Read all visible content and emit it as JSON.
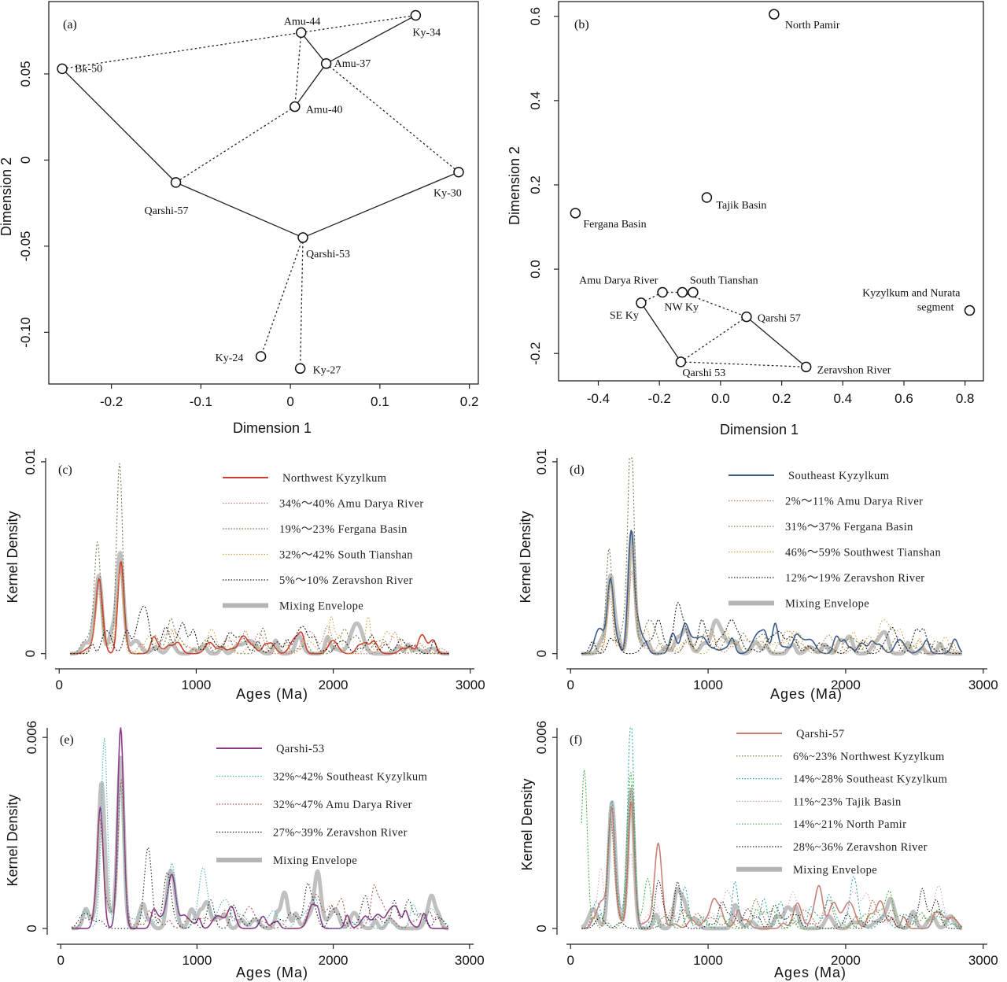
{
  "chart_data": [
    {
      "panel": "(a)",
      "type": "scatter",
      "xlabel": "Dimension 1",
      "ylabel": "Dimension 2",
      "xlim": [
        -0.27,
        0.21
      ],
      "ylim": [
        -0.13,
        0.092
      ],
      "xticks": [
        -0.2,
        -0.1,
        0,
        0.1,
        0.2
      ],
      "xtick_labels": [
        "-0.2",
        "-0.1",
        "0",
        "0.1",
        "0.2"
      ],
      "yticks": [
        -0.1,
        -0.05,
        0,
        0.05
      ],
      "ytick_labels": [
        "-0.10",
        "-0.05",
        "0",
        "0.05"
      ],
      "points": [
        {
          "label": "Bk-50",
          "x": -0.255,
          "y": 0.053
        },
        {
          "label": "Amu-44",
          "x": 0.012,
          "y": 0.074
        },
        {
          "label": "Ky-34",
          "x": 0.14,
          "y": 0.084
        },
        {
          "label": "Amu-37",
          "x": 0.04,
          "y": 0.056
        },
        {
          "label": "Amu-40",
          "x": 0.005,
          "y": 0.031
        },
        {
          "label": "Ky-30",
          "x": 0.188,
          "y": -0.007
        },
        {
          "label": "Qarshi-57",
          "x": -0.128,
          "y": -0.013
        },
        {
          "label": "Qarshi-53",
          "x": 0.014,
          "y": -0.045
        },
        {
          "label": "Ky-24",
          "x": -0.033,
          "y": -0.114
        },
        {
          "label": "Ky-27",
          "x": 0.011,
          "y": -0.121
        }
      ],
      "solid_links": [
        [
          "Bk-50",
          "Qarshi-57"
        ],
        [
          "Qarshi-57",
          "Qarshi-53"
        ],
        [
          "Qarshi-53",
          "Ky-30"
        ],
        [
          "Amu-37",
          "Ky-34"
        ],
        [
          "Amu-44",
          "Amu-37"
        ],
        [
          "Amu-37",
          "Amu-40"
        ]
      ],
      "dashed_links": [
        [
          "Bk-50",
          "Amu-44"
        ],
        [
          "Amu-44",
          "Ky-34"
        ],
        [
          "Amu-44",
          "Amu-40"
        ],
        [
          "Amu-40",
          "Qarshi-57"
        ],
        [
          "Amu-37",
          "Ky-30"
        ],
        [
          "Qarshi-53",
          "Ky-24"
        ],
        [
          "Qarshi-53",
          "Ky-27"
        ]
      ]
    },
    {
      "panel": "(b)",
      "type": "scatter",
      "xlabel": "Dimension 1",
      "ylabel": "Dimension 2",
      "xlim": [
        -0.53,
        0.86
      ],
      "ylim": [
        -0.265,
        0.635
      ],
      "xticks": [
        -0.4,
        -0.2,
        0,
        0.2,
        0.4,
        0.6,
        0.8
      ],
      "xtick_labels": [
        "-0.4",
        "-0.2",
        "0.0",
        "0.2",
        "0.4",
        "0.6",
        "0.8"
      ],
      "yticks": [
        -0.2,
        0,
        0.2,
        0.4,
        0.6
      ],
      "ytick_labels": [
        "-0.2",
        "0.0",
        "0.2",
        "0.4",
        "0.6"
      ],
      "points": [
        {
          "label": "North Pamir",
          "x": 0.175,
          "y": 0.605
        },
        {
          "label": "Tajik Basin",
          "x": -0.045,
          "y": 0.17
        },
        {
          "label": "Fergana Basin",
          "x": -0.475,
          "y": 0.133
        },
        {
          "label": "Amu Darya River",
          "x": -0.19,
          "y": -0.055
        },
        {
          "label": "South Tianshan",
          "x": -0.09,
          "y": -0.055
        },
        {
          "label": "NW Ky",
          "x": -0.125,
          "y": -0.055
        },
        {
          "label": "SE Ky",
          "x": -0.26,
          "y": -0.08
        },
        {
          "label": "Qarshi 57",
          "x": 0.085,
          "y": -0.113
        },
        {
          "label": "Qarshi 53",
          "x": -0.13,
          "y": -0.22
        },
        {
          "label": "Zeravshon River",
          "x": 0.28,
          "y": -0.232
        },
        {
          "label": "Kyzylkum and Nurata segment",
          "x": 0.815,
          "y": -0.098
        }
      ],
      "solid_links": [
        [
          "SE Ky",
          "Qarshi 53"
        ],
        [
          "Qarshi 57",
          "Zeravshon River"
        ]
      ],
      "dashed_links": [
        [
          "SE Ky",
          "Amu Darya River"
        ],
        [
          "Amu Darya River",
          "NW Ky"
        ],
        [
          "NW Ky",
          "Qarshi 57"
        ],
        [
          "Qarshi 57",
          "Qarshi 53"
        ],
        [
          "Qarshi 53",
          "Zeravshon River"
        ]
      ]
    },
    {
      "panel": "(c)",
      "type": "line",
      "xlabel": "Ages (Ma)",
      "ylabel": "Kernel Density",
      "xlim": [
        -30,
        3030
      ],
      "ylim": [
        -0.0003,
        0.0102
      ],
      "xticks": [
        0,
        1000,
        2000,
        3000
      ],
      "yticks": [
        0,
        0.01
      ],
      "ytick_labels": [
        "0",
        "0.01"
      ],
      "series": [
        {
          "name": "Northwest Kyzylkum",
          "color": "#c9412f",
          "peaks": [
            [
              290,
              0.0031
            ],
            [
              450,
              0.0044
            ],
            [
              800,
              0.0004
            ]
          ]
        },
        {
          "name": "34%～40% Amu Darya River",
          "color": "#d2736b",
          "peaks": [
            [
              285,
              0.003
            ],
            [
              445,
              0.0042
            ],
            [
              600,
              0.0005
            ],
            [
              820,
              0.0004
            ],
            [
              1850,
              0.0003
            ]
          ]
        },
        {
          "name": "19%～23% Fergana Basin",
          "color": "#6f7b4c",
          "peaks": [
            [
              280,
              0.0052
            ],
            [
              440,
              0.0097
            ],
            [
              950,
              0.0003
            ]
          ]
        },
        {
          "name": "32%～42% South Tianshan",
          "color": "#d6a23b",
          "peaks": [
            [
              290,
              0.003
            ],
            [
              445,
              0.0042
            ],
            [
              820,
              0.0005
            ],
            [
              1850,
              0.0004
            ]
          ]
        },
        {
          "name": "5%～10% Zeravshon River",
          "color": "#222222",
          "peaks": [
            [
              640,
              0.0014
            ],
            [
              780,
              0.0012
            ],
            [
              1100,
              0.0008
            ],
            [
              1850,
              0.0006
            ],
            [
              2500,
              0.0005
            ]
          ]
        },
        {
          "name": "Mixing Envelope",
          "color": "#b5b5b5",
          "peaks": [
            [
              290,
              0.0036
            ],
            [
              445,
              0.005
            ],
            [
              820,
              0.0005
            ]
          ]
        }
      ]
    },
    {
      "panel": "(d)",
      "type": "line",
      "xlabel": "Ages (Ma)",
      "ylabel": "Kernel Density",
      "xlim": [
        -30,
        3030
      ],
      "ylim": [
        -0.0003,
        0.0102
      ],
      "xticks": [
        0,
        1000,
        2000,
        3000
      ],
      "yticks": [
        0,
        0.01
      ],
      "ytick_labels": [
        "0",
        "0.01"
      ],
      "series": [
        {
          "name": "Southeast Kyzylkum",
          "color": "#3a5a8c",
          "peaks": [
            [
              290,
              0.0037
            ],
            [
              440,
              0.0062
            ],
            [
              830,
              0.0013
            ]
          ]
        },
        {
          "name": "2%～11% Amu Darya River",
          "color": "#c57e52",
          "peaks": [
            [
              285,
              0.003
            ],
            [
              445,
              0.0042
            ],
            [
              1850,
              0.0006
            ]
          ]
        },
        {
          "name": "31%～37% Fergana Basin",
          "color": "#6f7b4c",
          "peaks": [
            [
              280,
              0.0055
            ],
            [
              440,
              0.0101
            ]
          ]
        },
        {
          "name": "46%～59% Southwest Tianshan",
          "color": "#d6a23b",
          "peaks": [
            [
              290,
              0.0034
            ],
            [
              445,
              0.005
            ],
            [
              820,
              0.0005
            ]
          ]
        },
        {
          "name": "12%～19% Zeravshon River",
          "color": "#222222",
          "peaks": [
            [
              640,
              0.0016
            ],
            [
              780,
              0.0013
            ],
            [
              1100,
              0.0007
            ],
            [
              2500,
              0.0006
            ]
          ]
        },
        {
          "name": "Mixing Envelope",
          "color": "#b5b5b5",
          "peaks": [
            [
              290,
              0.0038
            ],
            [
              445,
              0.006
            ],
            [
              830,
              0.0008
            ]
          ]
        }
      ]
    },
    {
      "panel": "(e)",
      "type": "line",
      "xlabel": "Ages (Ma)",
      "ylabel": "Kernel Density",
      "xlim": [
        -30,
        3030
      ],
      "ylim": [
        -0.0002,
        0.0063
      ],
      "xticks": [
        0,
        1000,
        2000,
        3000
      ],
      "yticks": [
        0,
        0.006
      ],
      "ytick_labels": [
        "0",
        "0.006"
      ],
      "series": [
        {
          "name": "Qarshi-53",
          "color": "#8b3a86",
          "peaks": [
            [
              290,
              0.0038
            ],
            [
              440,
              0.0062
            ],
            [
              820,
              0.0015
            ],
            [
              1850,
              0.0004
            ]
          ]
        },
        {
          "name": "32%~42% Southeast Kyzylkum",
          "color": "#4bb7bd",
          "peaks": [
            [
              320,
              0.0056
            ],
            [
              440,
              0.0045
            ],
            [
              820,
              0.0018
            ],
            [
              1050,
              0.001
            ],
            [
              1850,
              0.0006
            ]
          ]
        },
        {
          "name": "32%~47% Amu Darya River",
          "color": "#a9564a",
          "peaks": [
            [
              285,
              0.0032
            ],
            [
              445,
              0.0042
            ],
            [
              1850,
              0.0005
            ]
          ]
        },
        {
          "name": "27%~39% Zeravshon River",
          "color": "#222222",
          "peaks": [
            [
              640,
              0.0018
            ],
            [
              780,
              0.0014
            ],
            [
              1100,
              0.0009
            ],
            [
              1850,
              0.0007
            ],
            [
              2550,
              0.0006
            ]
          ]
        },
        {
          "name": "Mixing Envelope",
          "color": "#b5b5b5",
          "peaks": [
            [
              300,
              0.0042
            ],
            [
              440,
              0.005
            ],
            [
              820,
              0.0011
            ]
          ]
        }
      ]
    },
    {
      "panel": "(f)",
      "type": "line",
      "xlabel": "Ages (Ma)",
      "ylabel": "Kernel Density",
      "xlim": [
        -30,
        3030
      ],
      "ylim": [
        -0.0002,
        0.0063
      ],
      "xticks": [
        0,
        1000,
        2000,
        3000
      ],
      "yticks": [
        0,
        0.006
      ],
      "ytick_labels": [
        "0",
        "0.006"
      ],
      "series": [
        {
          "name": "Qarshi-57",
          "color": "#c98077",
          "peaks": [
            [
              300,
              0.0034
            ],
            [
              440,
              0.0038
            ],
            [
              640,
              0.0023
            ],
            [
              1650,
              0.0008
            ],
            [
              1800,
              0.0008
            ]
          ]
        },
        {
          "name": "6%~23% Northwest Kyzylkum",
          "color": "#8a6a2a",
          "peaks": [
            [
              290,
              0.003
            ],
            [
              445,
              0.0044
            ],
            [
              820,
              0.0006
            ]
          ]
        },
        {
          "name": "14%~28% Southeast Kyzylkum",
          "color": "#2fa6b3",
          "peaks": [
            [
              300,
              0.0037
            ],
            [
              440,
              0.0063
            ],
            [
              830,
              0.0013
            ]
          ]
        },
        {
          "name": "11%~23% Tajik Basin",
          "color": "#e0a3c8",
          "peaks": [
            [
              220,
              0.0019
            ],
            [
              440,
              0.0022
            ],
            [
              1850,
              0.0004
            ]
          ]
        },
        {
          "name": "14%~21% North Pamir",
          "color": "#4caf50",
          "peaks": [
            [
              100,
              0.005
            ],
            [
              440,
              0.0035
            ],
            [
              560,
              0.0014
            ]
          ]
        },
        {
          "name": "28%~36% Zeravshon River",
          "color": "#222222",
          "peaks": [
            [
              640,
              0.0015
            ],
            [
              780,
              0.0012
            ],
            [
              1100,
              0.0008
            ],
            [
              2550,
              0.0005
            ]
          ]
        },
        {
          "name": "Mixing Envelope",
          "color": "#b5b5b5",
          "peaks": [
            [
              300,
              0.0034
            ],
            [
              440,
              0.0042
            ],
            [
              820,
              0.0008
            ]
          ]
        }
      ]
    }
  ]
}
